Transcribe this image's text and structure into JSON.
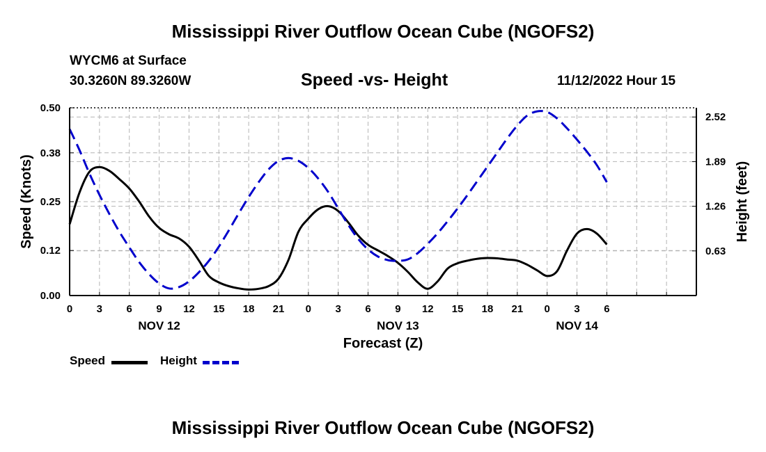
{
  "header": {
    "title": "Mississippi River Outflow Ocean Cube (NGOFS2)",
    "station": "WYCM6 at Surface",
    "coords": "30.3260N  89.3260W",
    "subtitle": "Speed -vs- Height",
    "datetime": "11/12/2022 Hour 15"
  },
  "footer": {
    "title": "Mississippi River Outflow Ocean Cube (NGOFS2)"
  },
  "legend": {
    "speed_label": "Speed",
    "height_label": "Height"
  },
  "colors": {
    "speed": "#000000",
    "height": "#0000cc",
    "grid": "#b4b4b4"
  },
  "chart_data": {
    "type": "line",
    "title": "Speed -vs- Height",
    "xlabel": "Forecast (Z)",
    "ylabel": "Speed (Knots)",
    "y2label": "Height (feet)",
    "xlim": [
      0,
      63
    ],
    "ylim": [
      0,
      0.5
    ],
    "y2lim": [
      0.0,
      2.65
    ],
    "x_ticks": [
      0,
      3,
      6,
      9,
      12,
      15,
      18,
      21,
      24,
      27,
      30,
      33,
      36,
      39,
      42,
      45,
      48,
      51,
      54,
      57,
      60,
      63
    ],
    "x_tick_labels": [
      "0",
      "3",
      "6",
      "9",
      "12",
      "15",
      "18",
      "21",
      "0",
      "3",
      "6",
      "9",
      "12",
      "15",
      "18",
      "21",
      "0",
      "3",
      "6"
    ],
    "x_tick_label_positions": [
      0,
      3,
      6,
      9,
      12,
      15,
      18,
      21,
      24,
      27,
      30,
      33,
      36,
      39,
      42,
      45,
      48,
      51,
      54
    ],
    "date_labels": [
      {
        "label": "NOV 12",
        "x": 9
      },
      {
        "label": "NOV 13",
        "x": 33
      },
      {
        "label": "NOV 14",
        "x": 51
      }
    ],
    "y_ticks": [
      0.0,
      0.12,
      0.25,
      0.38,
      0.5
    ],
    "y_tick_labels": [
      "0.00",
      "0.12",
      "0.25",
      "0.38",
      "0.50"
    ],
    "y2_ticks": [
      0.63,
      1.26,
      1.89,
      2.52
    ],
    "y2_tick_labels": [
      "0.63",
      "1.26",
      "1.89",
      "2.52"
    ],
    "grid": true,
    "series": [
      {
        "name": "Speed",
        "axis": "left",
        "style": "solid",
        "x": [
          0,
          1,
          2,
          3,
          4,
          5,
          6,
          7,
          8,
          9,
          10,
          11,
          12,
          13,
          14,
          15,
          16,
          17,
          18,
          19,
          20,
          21,
          22,
          23,
          24,
          25,
          26,
          27,
          28,
          29,
          30,
          31,
          32,
          33,
          34,
          35,
          36,
          37,
          38,
          39,
          40,
          41,
          42,
          43,
          44,
          45,
          46,
          47,
          48,
          49,
          50,
          51,
          52,
          53,
          54
        ],
        "values": [
          0.19,
          0.275,
          0.33,
          0.342,
          0.332,
          0.31,
          0.285,
          0.25,
          0.21,
          0.18,
          0.163,
          0.152,
          0.13,
          0.093,
          0.052,
          0.035,
          0.025,
          0.019,
          0.016,
          0.018,
          0.025,
          0.045,
          0.095,
          0.17,
          0.205,
          0.23,
          0.238,
          0.225,
          0.195,
          0.16,
          0.135,
          0.12,
          0.105,
          0.087,
          0.063,
          0.035,
          0.018,
          0.038,
          0.072,
          0.086,
          0.093,
          0.098,
          0.1,
          0.099,
          0.096,
          0.093,
          0.082,
          0.067,
          0.052,
          0.065,
          0.12,
          0.165,
          0.177,
          0.165,
          0.136
        ]
      },
      {
        "name": "Height",
        "axis": "right",
        "style": "dashed",
        "x": [
          0,
          1,
          2,
          3,
          4,
          5,
          6,
          7,
          8,
          9,
          10,
          11,
          12,
          13,
          14,
          15,
          16,
          17,
          18,
          19,
          20,
          21,
          22,
          23,
          24,
          25,
          26,
          27,
          28,
          29,
          30,
          31,
          32,
          33,
          34,
          35,
          36,
          37,
          38,
          39,
          40,
          41,
          42,
          43,
          44,
          45,
          46,
          47,
          48,
          49,
          50,
          51,
          52,
          53,
          54
        ],
        "values": [
          2.35,
          2.05,
          1.72,
          1.42,
          1.15,
          0.9,
          0.68,
          0.47,
          0.3,
          0.17,
          0.1,
          0.12,
          0.2,
          0.33,
          0.49,
          0.69,
          0.92,
          1.16,
          1.39,
          1.6,
          1.78,
          1.9,
          1.94,
          1.9,
          1.8,
          1.65,
          1.46,
          1.23,
          1.0,
          0.8,
          0.65,
          0.55,
          0.5,
          0.49,
          0.51,
          0.6,
          0.73,
          0.88,
          1.05,
          1.23,
          1.42,
          1.62,
          1.82,
          2.02,
          2.22,
          2.4,
          2.54,
          2.6,
          2.59,
          2.5,
          2.36,
          2.2,
          2.03,
          1.84,
          1.6
        ]
      }
    ]
  }
}
